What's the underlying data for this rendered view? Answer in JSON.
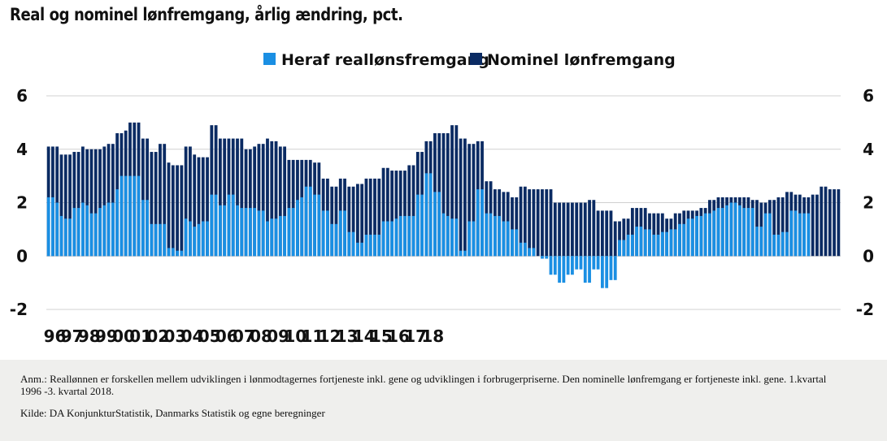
{
  "title": "Real og nominel lønfremgang, årlig ændring, pct.",
  "notes": {
    "annotation": "Anm.: Reallønnen er forskellen mellem udviklingen i lønmodtagernes fortjeneste inkl. gene og udviklingen i forbrugerpriserne. Den nominelle lønfremgang er fortjeneste inkl. gene. 1.kvartal 1996 -3. kvartal 2018.",
    "source": "Kilde: DA KonjunkturStatistik, Danmarks Statistik og egne beregninger"
  },
  "colors": {
    "real": "#1a8fe3",
    "nominal": "#0b2b63",
    "grid": "#d0d0d0"
  },
  "chart_data": {
    "type": "bar",
    "x_tick_labels": [
      "96",
      "97",
      "98",
      "99",
      "00",
      "01",
      "02",
      "03",
      "04",
      "05",
      "06",
      "07",
      "08",
      "09",
      "10",
      "11",
      "12",
      "13",
      "14",
      "15",
      "16",
      "17",
      "18"
    ],
    "ylim": [
      -2,
      6
    ],
    "y_ticks": [
      6,
      4,
      2,
      0,
      -2
    ],
    "grid": true,
    "legend_position": "top-center",
    "series": [
      {
        "name": "Heraf reallønsfremgang",
        "values": [
          2.2,
          2.2,
          2.0,
          1.5,
          1.4,
          1.4,
          1.8,
          1.8,
          2.0,
          1.9,
          1.6,
          1.6,
          1.8,
          1.9,
          2.0,
          2.0,
          2.5,
          3.0,
          3.0,
          3.0,
          3.0,
          3.0,
          2.1,
          2.1,
          1.2,
          1.2,
          1.2,
          1.2,
          0.3,
          0.3,
          0.2,
          0.2,
          1.4,
          1.3,
          1.1,
          1.2,
          1.3,
          1.3,
          2.3,
          2.3,
          1.9,
          1.9,
          2.3,
          2.3,
          1.9,
          1.8,
          1.8,
          1.8,
          1.8,
          1.7,
          1.7,
          1.3,
          1.4,
          1.4,
          1.5,
          1.5,
          1.8,
          1.8,
          2.1,
          2.2,
          2.6,
          2.6,
          2.3,
          2.3,
          1.7,
          1.7,
          1.2,
          1.2,
          1.7,
          1.7,
          0.9,
          0.9,
          0.5,
          0.5,
          0.8,
          0.8,
          0.8,
          0.8,
          1.3,
          1.3,
          1.3,
          1.4,
          1.5,
          1.5,
          1.5,
          1.5,
          2.3,
          2.3,
          3.1,
          3.1,
          2.4,
          2.4,
          1.6,
          1.5,
          1.4,
          1.4,
          0.2,
          0.2,
          1.3,
          1.3,
          2.5,
          2.5,
          1.6,
          1.6,
          1.5,
          1.5,
          1.3,
          1.3,
          1.0,
          1.0,
          0.5,
          0.5,
          0.3,
          0.3,
          0.0,
          -0.1,
          -0.1,
          -0.7,
          -0.7,
          -1.0,
          -1.0,
          -0.7,
          -0.7,
          -0.5,
          -0.5,
          -1.0,
          -1.0,
          -0.5,
          -0.5,
          -1.2,
          -1.2,
          -0.9,
          -0.9,
          0.6,
          0.6,
          0.8,
          0.8,
          1.1,
          1.1,
          1.0,
          1.0,
          0.8,
          0.8,
          0.9,
          0.9,
          1.0,
          1.0,
          1.2,
          1.2,
          1.4,
          1.4,
          1.5,
          1.5,
          1.6,
          1.6,
          1.7,
          1.8,
          1.8,
          1.9,
          2.0,
          2.0,
          1.9,
          1.8,
          1.8,
          1.8,
          1.1,
          1.1,
          1.6,
          1.6,
          0.8,
          0.8,
          0.9,
          0.9,
          1.7,
          1.7,
          1.6,
          1.6,
          1.6
        ]
      },
      {
        "name": "Nominel lønfremgang",
        "values": [
          4.1,
          4.1,
          4.1,
          3.8,
          3.8,
          3.8,
          3.9,
          3.9,
          4.1,
          4.0,
          4.0,
          4.0,
          4.0,
          4.1,
          4.2,
          4.2,
          4.6,
          4.6,
          4.7,
          5.0,
          5.0,
          5.0,
          4.4,
          4.4,
          3.9,
          3.9,
          4.2,
          4.2,
          3.5,
          3.4,
          3.4,
          3.4,
          4.1,
          4.1,
          3.8,
          3.7,
          3.7,
          3.7,
          4.9,
          4.9,
          4.4,
          4.4,
          4.4,
          4.4,
          4.4,
          4.4,
          4.0,
          4.0,
          4.1,
          4.2,
          4.2,
          4.4,
          4.3,
          4.3,
          4.1,
          4.1,
          3.6,
          3.6,
          3.6,
          3.6,
          3.6,
          3.6,
          3.5,
          3.5,
          2.9,
          2.9,
          2.6,
          2.6,
          2.9,
          2.9,
          2.6,
          2.6,
          2.7,
          2.7,
          2.9,
          2.9,
          2.9,
          2.9,
          3.3,
          3.3,
          3.2,
          3.2,
          3.2,
          3.2,
          3.4,
          3.4,
          3.9,
          3.9,
          4.3,
          4.3,
          4.6,
          4.6,
          4.6,
          4.6,
          4.9,
          4.9,
          4.4,
          4.4,
          4.2,
          4.2,
          4.3,
          4.3,
          2.8,
          2.8,
          2.5,
          2.5,
          2.4,
          2.4,
          2.2,
          2.2,
          2.6,
          2.6,
          2.5,
          2.5,
          2.5,
          2.5,
          2.5,
          2.5,
          2.0,
          2.0,
          2.0,
          2.0,
          2.0,
          2.0,
          2.0,
          2.0,
          2.1,
          2.1,
          1.7,
          1.7,
          1.7,
          1.7,
          1.3,
          1.3,
          1.4,
          1.4,
          1.8,
          1.8,
          1.8,
          1.8,
          1.6,
          1.6,
          1.6,
          1.6,
          1.4,
          1.4,
          1.6,
          1.6,
          1.7,
          1.7,
          1.7,
          1.7,
          1.8,
          1.8,
          2.1,
          2.1,
          2.2,
          2.2,
          2.2,
          2.2,
          2.2,
          2.2,
          2.2,
          2.2,
          2.1,
          2.1,
          2.0,
          2.0,
          2.1,
          2.1,
          2.2,
          2.2,
          2.4,
          2.4,
          2.3,
          2.3,
          2.2,
          2.2,
          2.3,
          2.3,
          2.6,
          2.6,
          2.5,
          2.5,
          2.5
        ]
      }
    ]
  }
}
